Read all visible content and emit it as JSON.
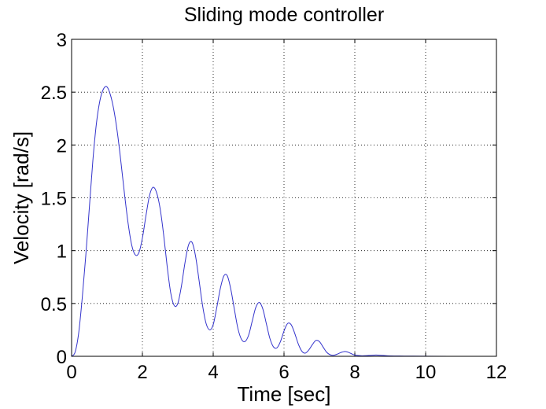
{
  "chart_data": {
    "type": "line",
    "title": "Sliding mode controller",
    "xlabel": "Time [sec]",
    "ylabel": "Velocity [rad/s]",
    "xlim": [
      0,
      12
    ],
    "ylim": [
      0,
      3
    ],
    "xticks": [
      0,
      2,
      4,
      6,
      8,
      10,
      12
    ],
    "yticks": [
      0,
      0.5,
      1,
      1.5,
      2,
      2.5,
      3
    ],
    "xtick_labels": [
      "0",
      "2",
      "4",
      "6",
      "8",
      "10",
      "12"
    ],
    "ytick_labels": [
      "0",
      "0.5",
      "1",
      "1.5",
      "2",
      "2.5",
      "3"
    ],
    "grid": true,
    "grid_style": "dotted",
    "series": [
      {
        "color": "#3333cc",
        "x": [
          0,
          0.1,
          0.2,
          0.3,
          0.4,
          0.5,
          0.6,
          0.7,
          0.8,
          0.9,
          1.0,
          1.1,
          1.2,
          1.3,
          1.4,
          1.5,
          1.6,
          1.7,
          1.8,
          1.9,
          2.0,
          2.1,
          2.2,
          2.3,
          2.4,
          2.5,
          2.6,
          2.7,
          2.8,
          2.9,
          3.0,
          3.1,
          3.2,
          3.3,
          3.4,
          3.5,
          3.6,
          3.7,
          3.8,
          3.9,
          4.0,
          4.1,
          4.2,
          4.3,
          4.4,
          4.5,
          4.6,
          4.7,
          4.8,
          4.9,
          5.0,
          5.1,
          5.2,
          5.3,
          5.4,
          5.5,
          5.6,
          5.7,
          5.8,
          5.9,
          6.0,
          6.1,
          6.2,
          6.3,
          6.4,
          6.5,
          6.6,
          6.7,
          6.8,
          6.9,
          7.0,
          7.1,
          7.2,
          7.3,
          7.4,
          7.5,
          7.6,
          7.7,
          7.8,
          7.9,
          8.0,
          8.2,
          8.4,
          8.6,
          8.8,
          9.0,
          9.5,
          10.0,
          11.0,
          12.0
        ],
        "y": [
          0,
          0.04,
          0.22,
          0.55,
          0.95,
          1.4,
          1.85,
          2.2,
          2.42,
          2.53,
          2.55,
          2.47,
          2.32,
          2.1,
          1.82,
          1.52,
          1.25,
          1.05,
          0.96,
          0.98,
          1.12,
          1.33,
          1.52,
          1.6,
          1.55,
          1.4,
          1.15,
          0.85,
          0.6,
          0.48,
          0.5,
          0.66,
          0.88,
          1.05,
          1.08,
          0.95,
          0.72,
          0.48,
          0.31,
          0.25,
          0.3,
          0.46,
          0.64,
          0.76,
          0.76,
          0.63,
          0.44,
          0.26,
          0.16,
          0.14,
          0.2,
          0.33,
          0.46,
          0.51,
          0.45,
          0.31,
          0.17,
          0.09,
          0.08,
          0.14,
          0.24,
          0.31,
          0.3,
          0.22,
          0.12,
          0.05,
          0.03,
          0.06,
          0.11,
          0.15,
          0.14,
          0.09,
          0.04,
          0.015,
          0.01,
          0.02,
          0.035,
          0.045,
          0.04,
          0.025,
          0.012,
          0.005,
          0.008,
          0.012,
          0.008,
          0.004,
          0.002,
          0.001,
          0.0,
          0.0
        ]
      }
    ]
  }
}
